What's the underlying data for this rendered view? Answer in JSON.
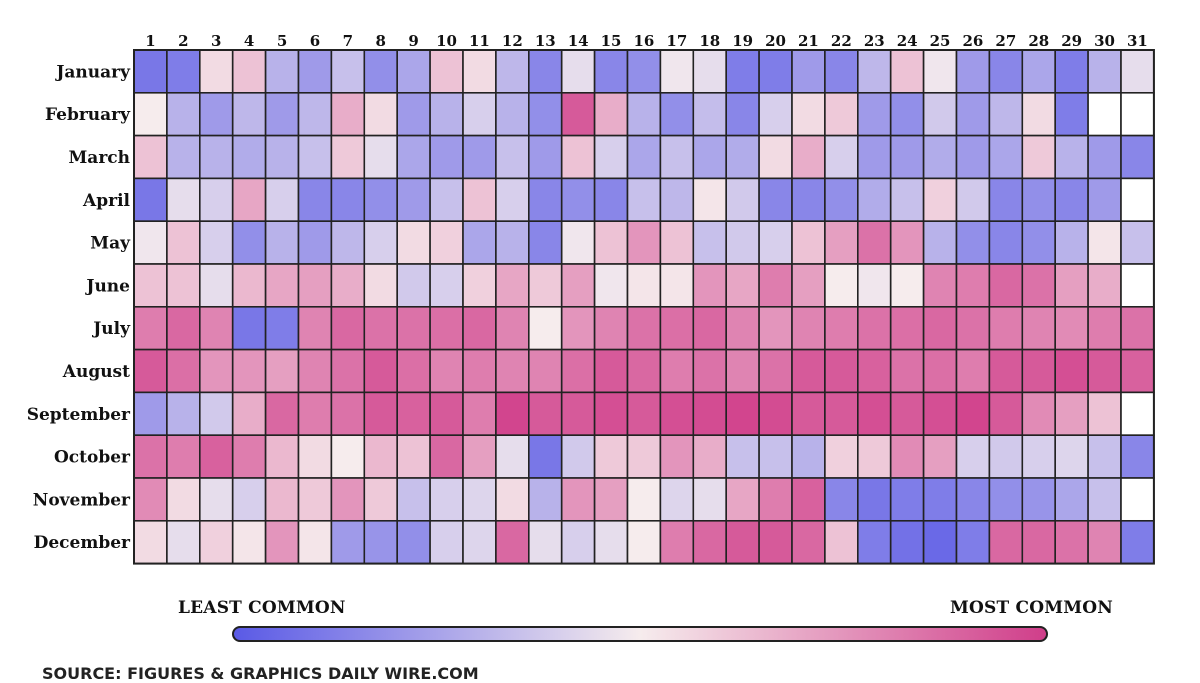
{
  "chart_data": {
    "type": "heatmap",
    "title": "",
    "x_labels": [
      "1",
      "2",
      "3",
      "4",
      "5",
      "6",
      "7",
      "8",
      "9",
      "10",
      "11",
      "12",
      "13",
      "14",
      "15",
      "16",
      "17",
      "18",
      "19",
      "20",
      "21",
      "22",
      "23",
      "24",
      "25",
      "26",
      "27",
      "28",
      "29",
      "30",
      "31"
    ],
    "y_labels": [
      "January",
      "February",
      "March",
      "April",
      "May",
      "June",
      "July",
      "August",
      "September",
      "October",
      "November",
      "December"
    ],
    "value_scale": {
      "min": 0,
      "max": 1,
      "description": "relative commonness of birthdays (0 = least common, 1 = most common)"
    },
    "colors": {
      "least": "#5a5ae6",
      "mid": "#f6eced",
      "most": "#d03e8a",
      "missing": "#ffffff",
      "grid": "#222222"
    },
    "values": [
      [
        0.1,
        0.12,
        0.55,
        0.62,
        0.3,
        0.22,
        0.35,
        0.18,
        0.26,
        0.62,
        0.55,
        0.32,
        0.15,
        0.45,
        0.15,
        0.18,
        0.48,
        0.45,
        0.12,
        0.12,
        0.22,
        0.15,
        0.32,
        0.62,
        0.48,
        0.22,
        0.15,
        0.26,
        0.12,
        0.3,
        0.45
      ],
      [
        0.5,
        0.3,
        0.22,
        0.32,
        0.22,
        0.32,
        0.68,
        0.55,
        0.22,
        0.3,
        0.4,
        0.3,
        0.18,
        0.92,
        0.68,
        0.3,
        0.18,
        0.34,
        0.15,
        0.4,
        0.55,
        0.6,
        0.22,
        0.18,
        0.38,
        0.22,
        0.32,
        0.55,
        0.12,
        null,
        null
      ],
      [
        0.62,
        0.3,
        0.3,
        0.28,
        0.3,
        0.35,
        0.6,
        0.45,
        0.26,
        0.22,
        0.22,
        0.35,
        0.22,
        0.62,
        0.4,
        0.26,
        0.35,
        0.26,
        0.28,
        0.55,
        0.68,
        0.4,
        0.22,
        0.22,
        0.28,
        0.22,
        0.26,
        0.6,
        0.3,
        0.22,
        0.15
      ],
      [
        0.1,
        0.45,
        0.4,
        0.7,
        0.4,
        0.15,
        0.15,
        0.18,
        0.22,
        0.35,
        0.62,
        0.4,
        0.15,
        0.18,
        0.15,
        0.35,
        0.32,
        0.52,
        0.38,
        0.15,
        0.15,
        0.18,
        0.28,
        0.35,
        0.58,
        0.38,
        0.15,
        0.18,
        0.15,
        0.22,
        null
      ],
      [
        0.48,
        0.62,
        0.4,
        0.18,
        0.3,
        0.22,
        0.32,
        0.4,
        0.55,
        0.58,
        0.26,
        0.3,
        0.15,
        0.48,
        0.62,
        0.75,
        0.62,
        0.35,
        0.38,
        0.4,
        0.62,
        0.72,
        0.85,
        0.75,
        0.3,
        0.18,
        0.15,
        0.18,
        0.3,
        0.52,
        0.35
      ],
      [
        0.62,
        0.62,
        0.45,
        0.65,
        0.7,
        0.72,
        0.68,
        0.55,
        0.38,
        0.4,
        0.58,
        0.7,
        0.6,
        0.72,
        0.48,
        0.52,
        0.52,
        0.75,
        0.7,
        0.82,
        0.72,
        0.5,
        0.48,
        0.5,
        0.8,
        0.82,
        0.88,
        0.85,
        0.72,
        0.68,
        null
      ],
      [
        0.82,
        0.88,
        0.8,
        0.1,
        0.12,
        0.8,
        0.88,
        0.85,
        0.85,
        0.86,
        0.88,
        0.8,
        0.5,
        0.75,
        0.8,
        0.85,
        0.86,
        0.88,
        0.8,
        0.75,
        0.8,
        0.82,
        0.85,
        0.86,
        0.88,
        0.85,
        0.82,
        0.8,
        0.78,
        0.82,
        0.85
      ],
      [
        0.92,
        0.86,
        0.75,
        0.75,
        0.72,
        0.8,
        0.85,
        0.92,
        0.86,
        0.8,
        0.82,
        0.8,
        0.8,
        0.86,
        0.92,
        0.88,
        0.82,
        0.85,
        0.8,
        0.85,
        0.92,
        0.92,
        0.9,
        0.85,
        0.86,
        0.82,
        0.92,
        0.92,
        0.95,
        0.92,
        0.9
      ],
      [
        0.22,
        0.3,
        0.38,
        0.68,
        0.88,
        0.82,
        0.85,
        0.92,
        0.9,
        0.92,
        0.82,
        0.98,
        0.92,
        0.92,
        0.95,
        0.92,
        0.95,
        0.96,
        0.98,
        0.96,
        0.92,
        0.92,
        0.95,
        0.92,
        0.95,
        0.98,
        0.92,
        0.78,
        0.72,
        0.62,
        null
      ],
      [
        0.85,
        0.82,
        0.9,
        0.82,
        0.65,
        0.55,
        0.5,
        0.65,
        0.62,
        0.88,
        0.72,
        0.45,
        0.1,
        0.38,
        0.6,
        0.6,
        0.75,
        0.68,
        0.35,
        0.35,
        0.3,
        0.58,
        0.6,
        0.78,
        0.72,
        0.4,
        0.38,
        0.4,
        0.42,
        0.35,
        0.15
      ],
      [
        0.78,
        0.55,
        0.45,
        0.4,
        0.65,
        0.6,
        0.75,
        0.6,
        0.35,
        0.4,
        0.42,
        0.55,
        0.3,
        0.75,
        0.72,
        0.5,
        0.42,
        0.45,
        0.7,
        0.82,
        0.9,
        0.15,
        0.1,
        0.12,
        0.12,
        0.15,
        0.18,
        0.2,
        0.26,
        0.35,
        null
      ],
      [
        0.55,
        0.45,
        0.58,
        0.52,
        0.75,
        0.52,
        0.22,
        0.2,
        0.18,
        0.4,
        0.42,
        0.88,
        0.45,
        0.4,
        0.45,
        0.5,
        0.82,
        0.88,
        0.92,
        0.92,
        0.88,
        0.62,
        0.12,
        0.08,
        0.05,
        0.12,
        0.88,
        0.88,
        0.85,
        0.8,
        0.12
      ]
    ],
    "legend": {
      "min_label": "LEAST COMMON",
      "max_label": "MOST COMMON"
    },
    "source": "SOURCE: FIGURES & GRAPHICS DAILY WIRE.COM"
  }
}
